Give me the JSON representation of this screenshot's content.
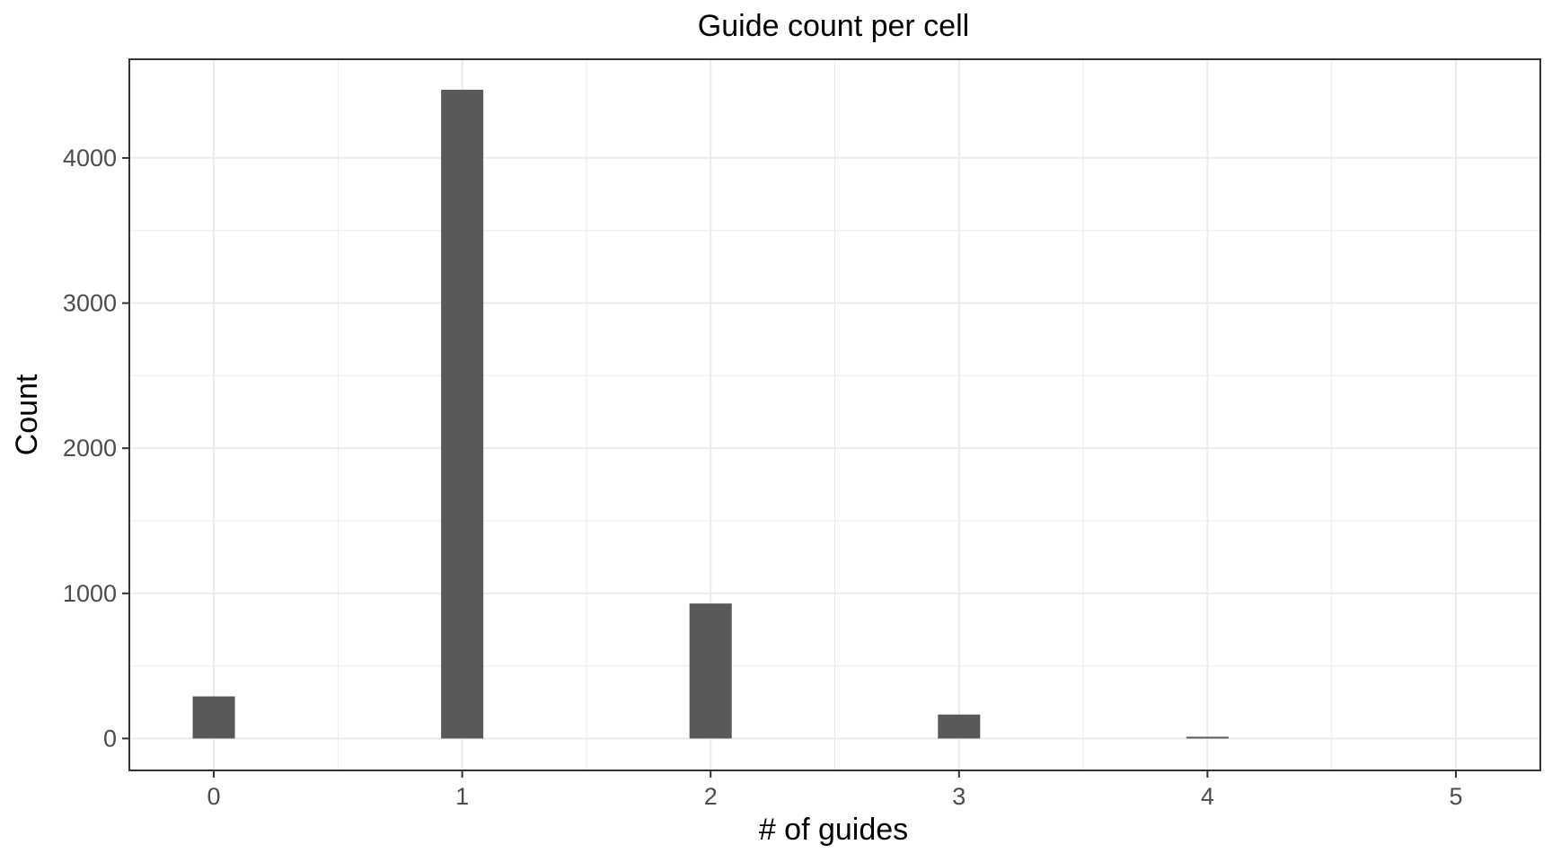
{
  "chart_data": {
    "type": "bar",
    "title": "Guide count per cell",
    "xlabel": "# of guides",
    "ylabel": "Count",
    "x": [
      0,
      1,
      2,
      3,
      4,
      5
    ],
    "values": [
      290,
      4470,
      930,
      165,
      12,
      0
    ],
    "xticks": [
      "0",
      "1",
      "2",
      "3",
      "4",
      "5"
    ],
    "yticks": [
      "0",
      "1000",
      "2000",
      "3000",
      "4000"
    ],
    "xlim": [
      -0.34,
      5.34
    ],
    "ylim": [
      -220,
      4680
    ],
    "grid": true,
    "bar_color": "#595959",
    "grid_color": "#ebebeb"
  }
}
